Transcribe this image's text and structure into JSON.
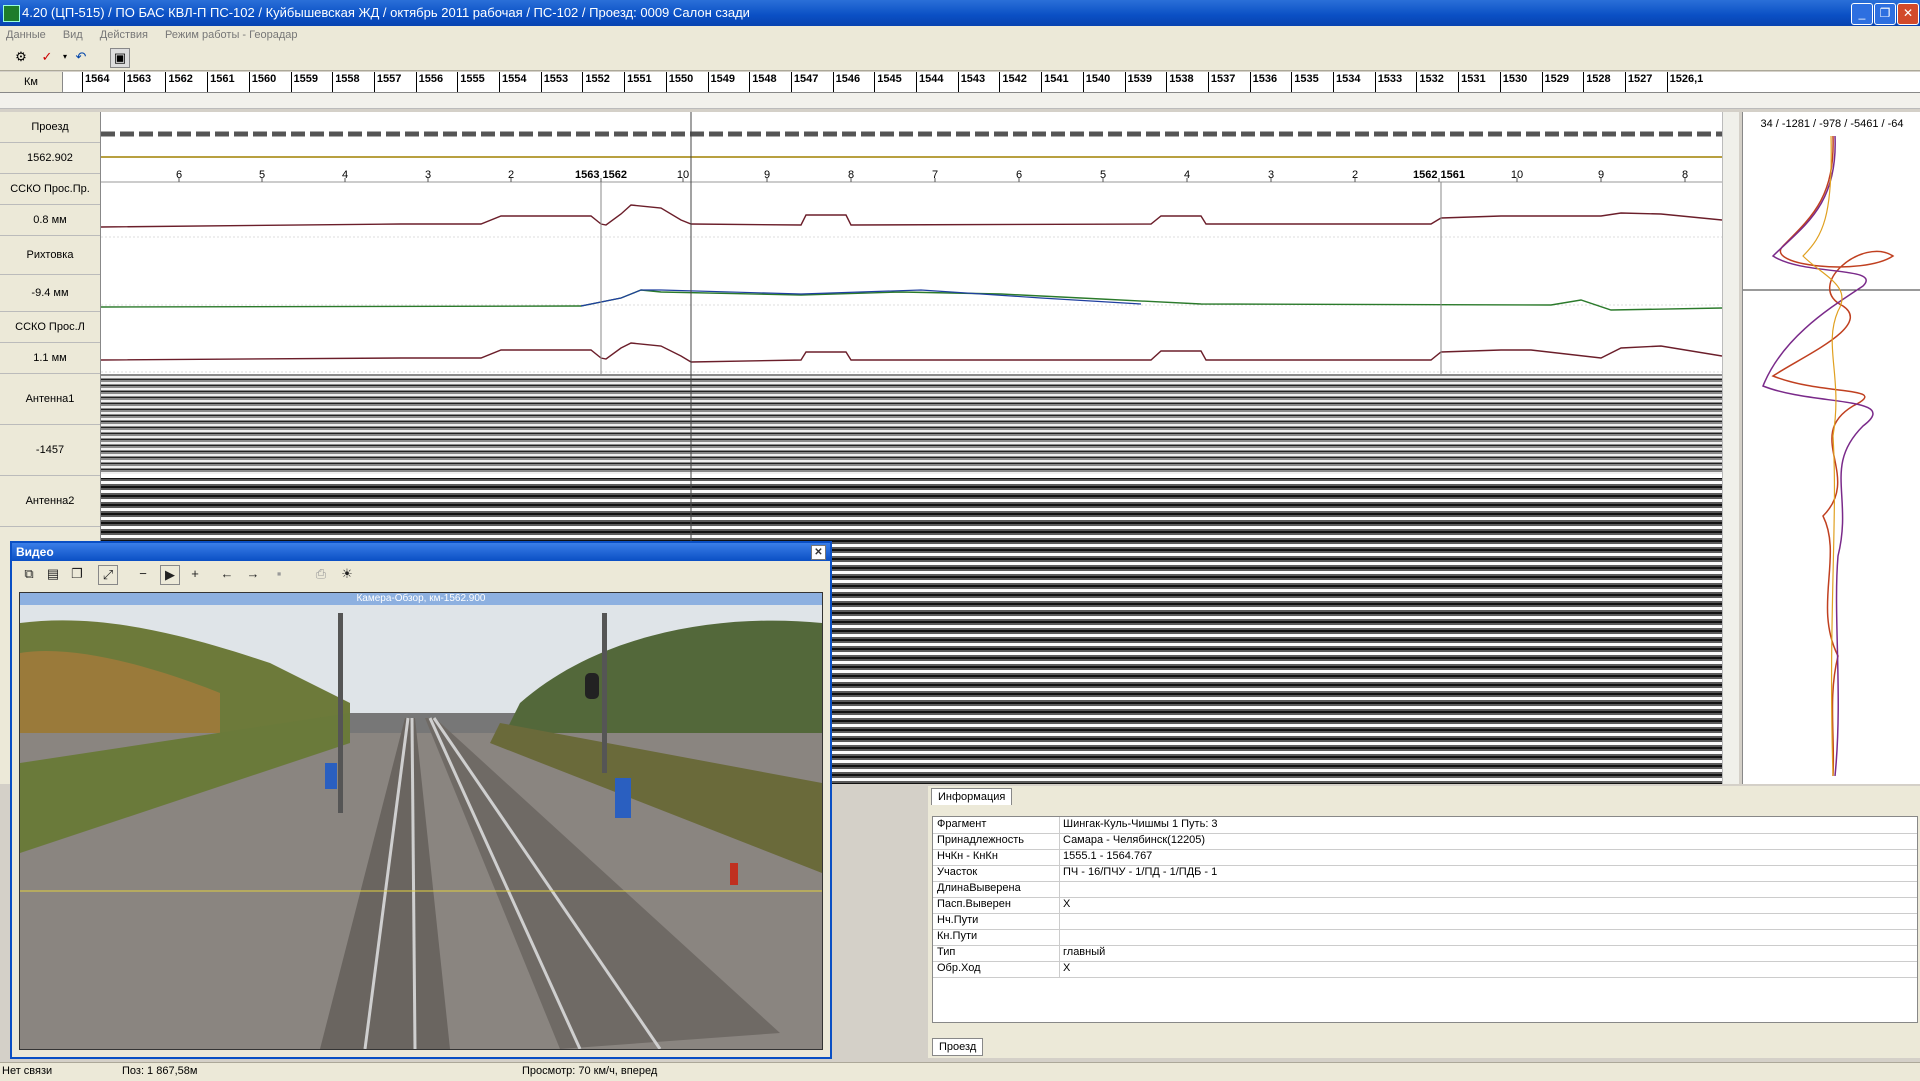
{
  "window": {
    "title": "4.20 (ЦП-515) / ПО БАС КВЛ-П ПС-102 / Куйбышевская ЖД / октябрь 2011 рабочая / ПС-102 / Проезд: 0009 Салон сзади"
  },
  "menu": [
    "Данные",
    "Вид",
    "Действия",
    "Режим работы - Георадар"
  ],
  "km_ruler": {
    "label": "Км",
    "ticks": [
      "1564",
      "1563",
      "1562",
      "1561",
      "1560",
      "1559",
      "1558",
      "1557",
      "1556",
      "1555",
      "1554",
      "1553",
      "1552",
      "1551",
      "1550",
      "1549",
      "1548",
      "1547",
      "1546",
      "1545",
      "1544",
      "1543",
      "1542",
      "1541",
      "1540",
      "1539",
      "1538",
      "1537",
      "1536",
      "1535",
      "1534",
      "1533",
      "1532",
      "1531",
      "1530",
      "1529",
      "1528",
      "1527",
      "1526,1"
    ]
  },
  "tracks": {
    "proezd_label": "Проезд",
    "position_value": "1562.902",
    "ssko_pr_label": "ССКО Прос.Пр.",
    "ssko_pr_value": "0.8 мм",
    "rihtovka_label": "Рихтовка",
    "rihtovka_value": "-9.4 мм",
    "ssko_l_label": "ССКО Прос.Л",
    "ssko_l_value": "1.1 мм",
    "antenna1_label": "Антенна1",
    "antenna1_value": "-1457",
    "antenna2_label": "Антенна2"
  },
  "picket_scale": {
    "ticks_left": [
      "6",
      "5",
      "4",
      "3",
      "2"
    ],
    "marker1": "1563 1562",
    "ticks_mid": [
      "10",
      "9",
      "8",
      "7",
      "6",
      "5",
      "4",
      "3",
      "2"
    ],
    "marker2": "1562 1561",
    "ticks_right": [
      "10",
      "9",
      "8"
    ]
  },
  "right_panel": {
    "readout": "34 / -1281 / -978 / -5461 / -64"
  },
  "video": {
    "title": "Видео",
    "caption": "Камера-Обзор, км-1562.900"
  },
  "info": {
    "tab": "Информация",
    "rows": [
      {
        "key": "Фрагмент",
        "value": "Шингак-Куль-Чишмы 1 Путь: 3"
      },
      {
        "key": "Принадлежность",
        "value": "Самара - Челябинск(12205)"
      },
      {
        "key": "НчКн - КнКн",
        "value": "1555.1 - 1564.767"
      },
      {
        "key": "Участок",
        "value": "ПЧ - 16/ПЧУ - 1/ПД - 1/ПДБ - 1"
      },
      {
        "key": "ДлинаВыверена",
        "value": ""
      },
      {
        "key": "Пасп.Выверен",
        "value": "X"
      },
      {
        "key": "Нч.Пути",
        "value": ""
      },
      {
        "key": "Кн.Пути",
        "value": ""
      },
      {
        "key": "Тип",
        "value": "главный"
      },
      {
        "key": "Обр.Ход",
        "value": "X"
      }
    ],
    "bottom_tab": "Проезд"
  },
  "status": {
    "connection": "Нет связи",
    "position": "Поз: 1 867,58м",
    "view": "Просмотр: 70 км/ч, вперед"
  },
  "colors": {
    "title_blue": "#0a4fc4",
    "trace_dark_red": "#6b1e2a",
    "trace_green": "#2b7a2b",
    "trace_blue": "#1f3fa0"
  }
}
